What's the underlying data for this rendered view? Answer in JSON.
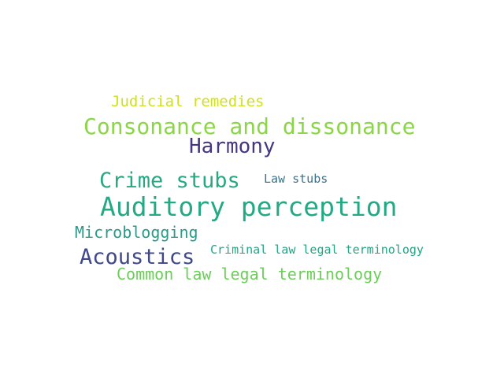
{
  "words": [
    {
      "text": "Judicial remedies",
      "color": "#d0e11c"
    },
    {
      "text": "Consonance and dissonance",
      "color": "#8bd646"
    },
    {
      "text": "Harmony",
      "color": "#453781"
    },
    {
      "text": "Crime stubs",
      "color": "#27a882"
    },
    {
      "text": "Law stubs",
      "color": "#3b728c"
    },
    {
      "text": "Auditory perception",
      "color": "#23a983"
    },
    {
      "text": "Microblogging",
      "color": "#2a9a89"
    },
    {
      "text": "Acoustics",
      "color": "#3f4889"
    },
    {
      "text": "Criminal law legal terminology",
      "color": "#21a685"
    },
    {
      "text": "Common law legal terminology",
      "color": "#6ccd5a"
    }
  ]
}
